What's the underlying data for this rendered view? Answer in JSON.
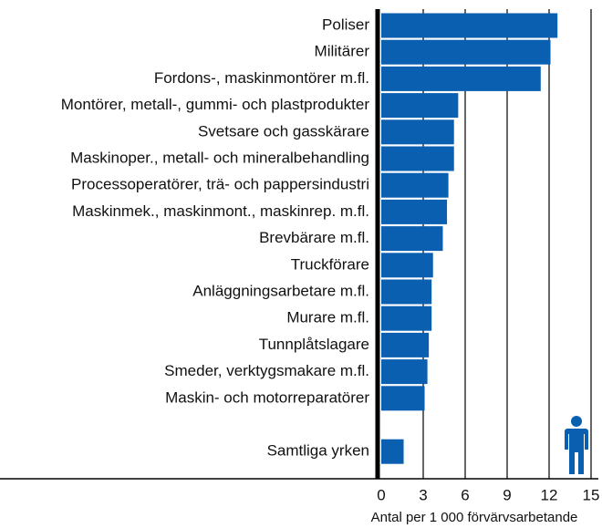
{
  "chart_data": {
    "type": "bar",
    "orientation": "horizontal",
    "categories": [
      "Poliser",
      "Militärer",
      "Fordons-, maskinmontörer m.fl.",
      "Montörer, metall-, gummi- och plastprodukter",
      "Svetsare och gasskärare",
      "Maskinoper., metall- och mineralbehandling",
      "Processoperatörer, trä- och pappersindustri",
      "Maskinmek., maskinmont., maskinrep. m.fl.",
      "Brevbärare m.fl.",
      "Truckförare",
      "Anläggningsarbetare m.fl.",
      "Murare m.fl.",
      "Tunnplåtslagare",
      "Smeder, verktygsmakare m.fl.",
      "Maskin- och motorreparatörer",
      "Samtliga yrken"
    ],
    "values": [
      12.6,
      12.1,
      11.4,
      5.5,
      5.2,
      5.2,
      4.8,
      4.7,
      4.4,
      3.7,
      3.6,
      3.6,
      3.4,
      3.3,
      3.1,
      1.6
    ],
    "color": "#0b5fb0",
    "xlabel": "Antal per 1 000 förvärvsarbetande",
    "xlim": [
      0,
      15
    ],
    "xticks": [
      0,
      3,
      6,
      9,
      12,
      15
    ],
    "grid": true
  }
}
